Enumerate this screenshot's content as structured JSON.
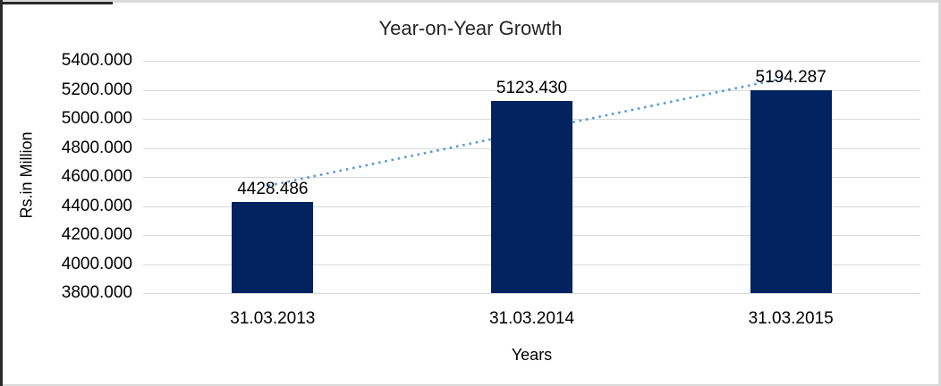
{
  "chart_data": {
    "type": "bar",
    "title": "Year-on-Year Growth",
    "xlabel": "Years",
    "ylabel": "Rs.in Million",
    "categories": [
      "31.03.2013",
      "31.03.2014",
      "31.03.2015"
    ],
    "values": [
      4428.486,
      5123.43,
      5194.287
    ],
    "data_labels": [
      "4428.486",
      "5123.430",
      "5194.287"
    ],
    "ylim": [
      3800,
      5400
    ],
    "ytick_step": 200,
    "ytick_labels": [
      "5400.000",
      "5200.000",
      "5000.000",
      "4800.000",
      "4600.000",
      "4400.000",
      "4200.000",
      "4000.000",
      "3800.000"
    ],
    "grid": true,
    "legend": "none",
    "bar_color": "#02235F",
    "gridline_color": "#D9D9D9",
    "trendline": {
      "type": "linear",
      "style": "dotted",
      "color": "#5B9BD5"
    }
  }
}
